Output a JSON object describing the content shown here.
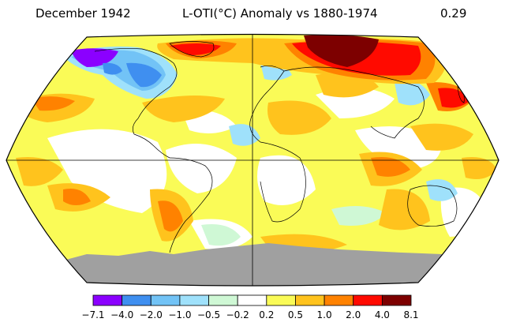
{
  "header": {
    "date": "December 1942",
    "title": "L-OTI(°C) Anomaly vs 1880-1974",
    "global_mean": "0.29"
  },
  "legend": {
    "colors": [
      "#8b00ff",
      "#3f8ff0",
      "#72c3f6",
      "#9fe1fb",
      "#cff8d5",
      "#ffffff",
      "#fafb57",
      "#ffc31d",
      "#ff8200",
      "#ff0a00",
      "#7d0000"
    ],
    "tick_labels": [
      "−7.1",
      "−4.0",
      "−2.0",
      "−1.0",
      "−0.5",
      "−0.2",
      "0.2",
      "0.5",
      "1.0",
      "2.0",
      "4.0",
      "8.1"
    ]
  },
  "map": {
    "projection": "Robinson",
    "missing_data_color": "#a0a0a0"
  }
}
